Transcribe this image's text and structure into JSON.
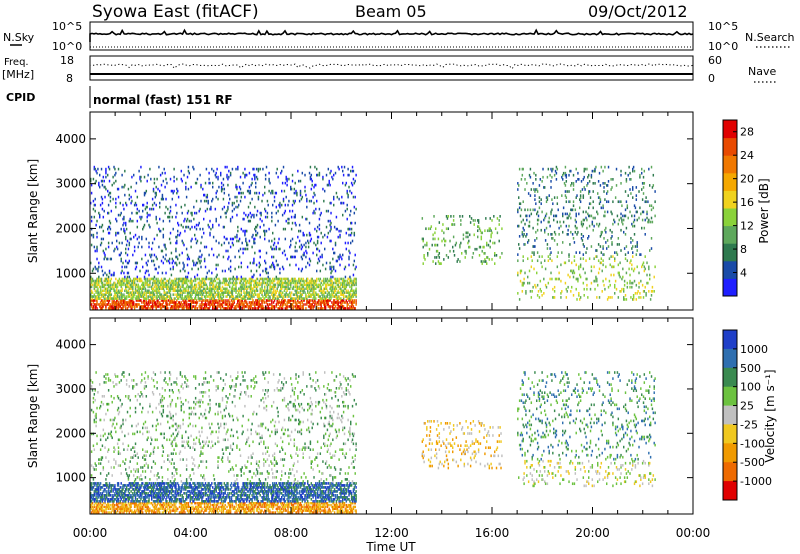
{
  "header": {
    "title": "Syowa East (fitACF)",
    "beam": "Beam 05",
    "date": "09/Oct/2012"
  },
  "panels": {
    "nsky": {
      "label": "N.Sky",
      "left_ticks": [
        "10^5",
        "10^0"
      ],
      "right_label": "N.Search",
      "right_ticks": [
        "10^5",
        "10^0"
      ]
    },
    "freq": {
      "label_line1": "Freq.",
      "label_line2": "[MHz]",
      "left_ticks": [
        "18",
        "8"
      ],
      "right_label": "Nave",
      "right_ticks": [
        "60",
        "0"
      ]
    },
    "cpid": {
      "label": "CPID",
      "value": "normal (fast) 151 RF"
    }
  },
  "colors": {
    "power": [
      "#1f1fff",
      "#1a4ba8",
      "#2f7a4f",
      "#5ea85c",
      "#8ad23a",
      "#f0d21e",
      "#f5a800",
      "#f07800",
      "#e84a00",
      "#e00000"
    ],
    "velocity": [
      "#1f3fc8",
      "#2f6fb0",
      "#3a8a50",
      "#6cc240",
      "#c0c0c0",
      "#f0c820",
      "#f09a00",
      "#ee6a00",
      "#e00000"
    ]
  },
  "chart_data": [
    {
      "type": "heatmap",
      "name": "power",
      "ylabel": "Slant Range [km]",
      "yticks": [
        1000,
        2000,
        3000,
        4000
      ],
      "ylim": [
        180,
        4600
      ],
      "xlim": [
        0,
        24
      ],
      "xticks": [
        "00:00",
        "04:00",
        "08:00",
        "12:00",
        "16:00",
        "20:00",
        "00:00"
      ],
      "colorbar": {
        "label": "Power [dB]",
        "ticks": [
          4,
          8,
          12,
          16,
          20,
          24,
          28
        ],
        "range": [
          0,
          30
        ]
      },
      "regions": [
        {
          "t0": 0.0,
          "t1": 10.6,
          "r0": 200,
          "r1": 420,
          "level": 8
        },
        {
          "t0": 0.0,
          "t1": 10.6,
          "r0": 420,
          "r1": 900,
          "level": 4
        },
        {
          "t0": 0.0,
          "t1": 10.6,
          "r0": 900,
          "r1": 3400,
          "level": 1
        },
        {
          "t0": 13.2,
          "t1": 16.4,
          "r0": 1200,
          "r1": 2300,
          "level": 3
        },
        {
          "t0": 17.0,
          "t1": 22.5,
          "r0": 400,
          "r1": 1400,
          "level": 4
        },
        {
          "t0": 17.0,
          "t1": 22.5,
          "r0": 1400,
          "r1": 3400,
          "level": 2
        }
      ]
    },
    {
      "type": "heatmap",
      "name": "velocity",
      "ylabel": "Slant Range [km]",
      "yticks": [
        1000,
        2000,
        3000,
        4000
      ],
      "ylim": [
        180,
        4600
      ],
      "xlim": [
        0,
        24
      ],
      "xticks": [
        "00:00",
        "04:00",
        "08:00",
        "12:00",
        "16:00",
        "20:00",
        "00:00"
      ],
      "xlabel": "Time UT",
      "colorbar": {
        "label": "Velocity [m s⁻¹]",
        "ticks": [
          "1000",
          "500",
          "100",
          "25",
          "-25",
          "-100",
          "-500",
          "-1000"
        ]
      },
      "regions": [
        {
          "t0": 0.0,
          "t1": 10.6,
          "r0": 200,
          "r1": 450,
          "level": 6
        },
        {
          "t0": 0.0,
          "t1": 10.6,
          "r0": 450,
          "r1": 900,
          "level": 1
        },
        {
          "t0": 0.0,
          "t1": 10.6,
          "r0": 900,
          "r1": 3400,
          "level": 3
        },
        {
          "t0": 13.2,
          "t1": 16.4,
          "r0": 1200,
          "r1": 2300,
          "level": 5
        },
        {
          "t0": 17.0,
          "t1": 22.5,
          "r0": 800,
          "r1": 1400,
          "level": 4
        },
        {
          "t0": 17.0,
          "t1": 22.5,
          "r0": 1400,
          "r1": 3400,
          "level": 2
        }
      ]
    }
  ]
}
